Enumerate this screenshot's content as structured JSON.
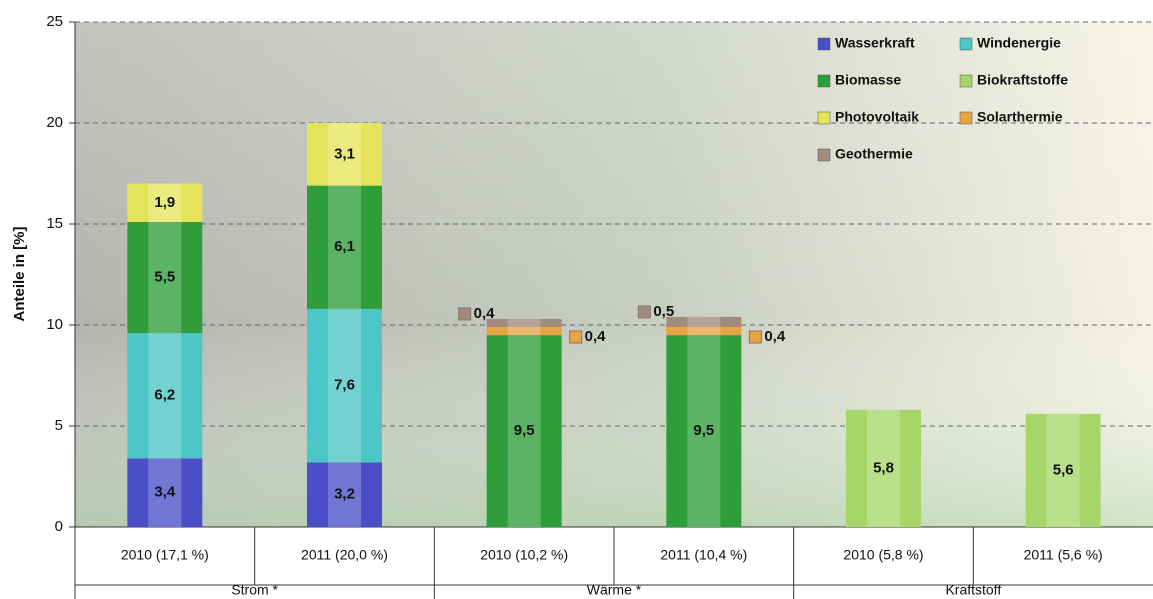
{
  "chart_data": {
    "type": "stacked-bar",
    "ylabel": "Anteile in [%]",
    "categories": [
      "2010 (17,1 %)",
      "2011 (20,0 %)",
      "2010 (10,2 %)",
      "2011 (10,4 %)",
      "2010 (5,8 %)",
      "2011 (5,6 %)"
    ],
    "groups": [
      "Strom *",
      "Wärme *",
      "Kraftstoff"
    ],
    "series": [
      {
        "name": "Wasserkraft",
        "color": "#4a4fc8",
        "values": [
          3.4,
          3.2,
          null,
          null,
          null,
          null
        ],
        "value_labels": [
          "3,4",
          "3,2",
          null,
          null,
          null,
          null
        ]
      },
      {
        "name": "Windenergie",
        "color": "#4cc6c6",
        "values": [
          6.2,
          7.6,
          null,
          null,
          null,
          null
        ],
        "value_labels": [
          "6,2",
          "7,6",
          null,
          null,
          null,
          null
        ]
      },
      {
        "name": "Biomasse",
        "color": "#2f9e3a",
        "values": [
          5.5,
          6.1,
          9.5,
          9.5,
          null,
          null
        ],
        "value_labels": [
          "5,5",
          "6,1",
          "9,5",
          "9,5",
          null,
          null
        ]
      },
      {
        "name": "Biokraftstoffe",
        "color": "#a6d66a",
        "values": [
          null,
          null,
          null,
          null,
          5.8,
          5.6
        ],
        "value_labels": [
          null,
          null,
          null,
          null,
          "5,8",
          "5,6"
        ]
      },
      {
        "name": "Photovoltaik",
        "color": "#e4e45a",
        "values": [
          1.9,
          3.1,
          null,
          null,
          null,
          null
        ],
        "value_labels": [
          "1,9",
          "3,1",
          null,
          null,
          null,
          null
        ]
      },
      {
        "name": "Solarthermie",
        "color": "#e8a444",
        "values": [
          null,
          null,
          0.4,
          0.4,
          null,
          null
        ],
        "value_labels": [
          null,
          null,
          "0,4",
          "0,4",
          null,
          null
        ]
      },
      {
        "name": "Geothermie",
        "color": "#a28a7c",
        "values": [
          null,
          null,
          0.4,
          0.5,
          null,
          null
        ],
        "value_labels": [
          null,
          null,
          "0,4",
          "0,5",
          null,
          null
        ]
      }
    ],
    "ylim": [
      0,
      25
    ],
    "yticks": [
      0,
      5,
      10,
      15,
      20,
      25
    ],
    "grid": true,
    "legend": "top-right"
  }
}
